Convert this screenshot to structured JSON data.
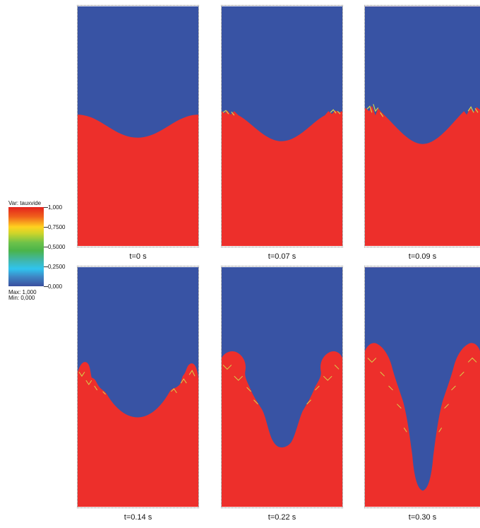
{
  "legend": {
    "title": "Var: tauxvide",
    "ticks": [
      "1,000",
      "0,7500",
      "0,5000",
      "0,2500",
      "0,000"
    ],
    "max": "Max:  1,000",
    "min": "Min:  0,000"
  },
  "colors": {
    "gas": "#3853a4",
    "liquid": "#ed2f2b",
    "interface": "#d6d64a"
  },
  "panels": [
    {
      "time": "t=0 s"
    },
    {
      "time": "t=0.07 s"
    },
    {
      "time": "t=0.09 s"
    },
    {
      "time": "t=0.14 s"
    },
    {
      "time": "t=0.22 s"
    },
    {
      "time": "t=0.30 s"
    }
  ]
}
